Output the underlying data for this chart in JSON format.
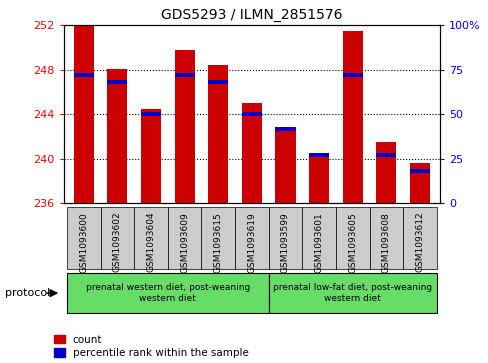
{
  "title": "GDS5293 / ILMN_2851576",
  "samples": [
    "GSM1093600",
    "GSM1093602",
    "GSM1093604",
    "GSM1093609",
    "GSM1093615",
    "GSM1093619",
    "GSM1093599",
    "GSM1093601",
    "GSM1093605",
    "GSM1093608",
    "GSM1093612"
  ],
  "count_values": [
    252.0,
    248.1,
    244.5,
    249.8,
    248.4,
    245.0,
    242.5,
    240.5,
    251.5,
    241.5,
    239.6
  ],
  "percentile_values": [
    72,
    68,
    50,
    72,
    68,
    50,
    42,
    27,
    72,
    27,
    18
  ],
  "ylim_left": [
    236,
    252
  ],
  "ylim_right": [
    0,
    100
  ],
  "yticks_left": [
    236,
    240,
    244,
    248,
    252
  ],
  "yticks_right": [
    0,
    25,
    50,
    75,
    100
  ],
  "group1_label": "prenatal western diet, post-weaning\nwestern diet",
  "group2_label": "prenatal low-fat diet, post-weaning\nwestern diet",
  "group_color": "#66DD66",
  "group1_samples": 6,
  "group2_samples": 5,
  "bar_color": "#CC0000",
  "percentile_color": "#0000CC",
  "protocol_label": "protocol",
  "legend_count": "count",
  "legend_pct": "percentile rank within the sample",
  "bar_width": 0.6,
  "base_value": 236,
  "grid_ticks": [
    240,
    244,
    248
  ],
  "sample_bg_color": "#CCCCCC"
}
